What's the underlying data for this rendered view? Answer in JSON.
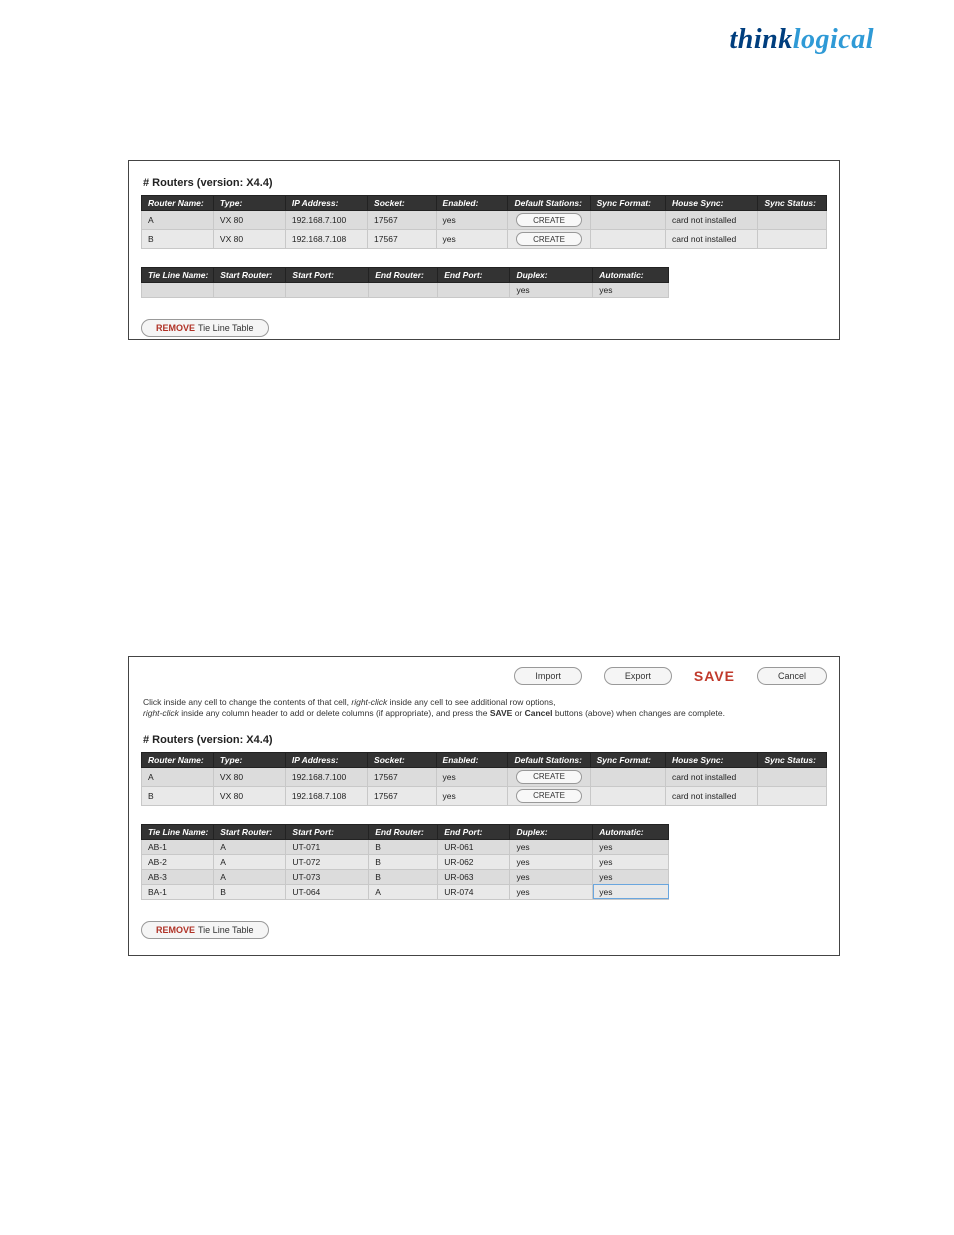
{
  "brand": {
    "w1": "think",
    "w2": "logical"
  },
  "colors": {
    "brand_w1": "#003e7e",
    "brand_w2": "#2f9ad6",
    "panel_border": "#444444",
    "header_bg": "#333333",
    "header_fg": "#ffffff",
    "row_bg": "#dcdcdc",
    "row_alt_bg": "#e9e9e9",
    "cell_border": "#c8c8c8",
    "pill_border": "#999999",
    "pill_bg": "#f5f5f5",
    "save_color": "#c0392b",
    "remove_color": "#b03226",
    "selected_outline": "#6aa6de",
    "selected_bg": "#d6e4f2"
  },
  "fontsize": {
    "title": 11,
    "cell": 8.5,
    "instr": 8.5,
    "save": 14,
    "pill": 9
  },
  "section_title": "# Routers (version: X4.4)",
  "routers": {
    "columns": [
      "Router Name:",
      "Type:",
      "IP Address:",
      "Socket:",
      "Enabled:",
      "Default Stations:",
      "Sync Format:",
      "House Sync:",
      "Sync Status:"
    ],
    "rows": [
      {
        "cells": [
          "A",
          "VX 80",
          "192.168.7.100",
          "17567",
          "yes",
          {
            "button": "CREATE"
          },
          "",
          "card not installed",
          ""
        ]
      },
      {
        "cells": [
          "B",
          "VX 80",
          "192.168.7.108",
          "17567",
          "yes",
          {
            "button": "CREATE"
          },
          "",
          "card not installed",
          ""
        ]
      }
    ]
  },
  "tieline_empty": {
    "columns": [
      "Tie Line Name:",
      "Start Router:",
      "Start Port:",
      "End Router:",
      "End Port:",
      "Duplex:",
      "Automatic:"
    ],
    "rows": [
      {
        "cells": [
          "",
          "",
          "",
          "",
          "",
          "yes",
          "yes"
        ]
      }
    ]
  },
  "tieline_full": {
    "columns": [
      "Tie Line Name:",
      "Start Router:",
      "Start Port:",
      "End Router:",
      "End Port:",
      "Duplex:",
      "Automatic:"
    ],
    "rows": [
      {
        "cells": [
          "AB-1",
          "A",
          "UT-071",
          "B",
          "UR-061",
          "yes",
          "yes"
        ]
      },
      {
        "cells": [
          "AB-2",
          "A",
          "UT-072",
          "B",
          "UR-062",
          "yes",
          "yes"
        ]
      },
      {
        "cells": [
          "AB-3",
          "A",
          "UT-073",
          "B",
          "UR-063",
          "yes",
          "yes"
        ]
      },
      {
        "cells": [
          "BA-1",
          "B",
          "UT-064",
          "A",
          "UR-074",
          "yes",
          {
            "text": "yes",
            "selected": true
          }
        ]
      }
    ]
  },
  "buttons": {
    "import": "Import",
    "export": "Export",
    "save": "SAVE",
    "cancel": "Cancel",
    "remove_strong": "REMOVE",
    "remove_rest": " Tie Line Table"
  },
  "instructions": {
    "line1_a": "Click inside any cell to change the contents of that cell, ",
    "line1_em": "right-click",
    "line1_b": " inside any cell to see additional row options,",
    "line2_a_em": "right-click",
    "line2_a": " inside any column header to add or delete columns (if appropriate), and press the ",
    "line2_b1": "SAVE",
    "line2_mid": " or ",
    "line2_b2": "Cancel",
    "line2_end": " buttons (above) when changes are complete."
  }
}
